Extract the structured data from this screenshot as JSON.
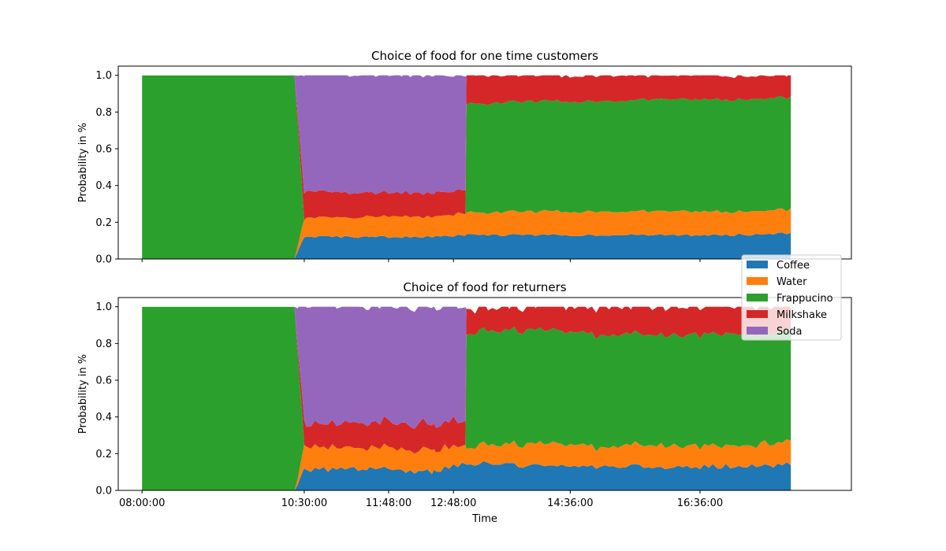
{
  "chart_data": [
    {
      "type": "area",
      "stacked": true,
      "title": "Choice of food for one time customers",
      "xlabel": "",
      "ylabel": "Probability in %",
      "ylim": [
        0,
        1.05
      ],
      "yticks": [
        "0.0",
        "0.2",
        "0.4",
        "0.6",
        "0.8",
        "1.0"
      ],
      "xlim": [
        "07:38",
        "18:56"
      ],
      "xticks": [
        "08:00:00",
        "10:30:00",
        "11:48:00",
        "12:48:00",
        "14:36:00",
        "16:36:00"
      ],
      "xtick_labels_visible": false,
      "grid": false,
      "series": [
        {
          "name": "Coffee",
          "color": "#1f77b4",
          "points": [
            [
              "08:00",
              0
            ],
            [
              "10:21",
              0
            ],
            [
              "10:30",
              0.12
            ],
            [
              "11:30",
              0.12
            ],
            [
              "12:30",
              0.12
            ],
            [
              "13:00",
              0.13
            ],
            [
              "14:00",
              0.13
            ],
            [
              "15:00",
              0.13
            ],
            [
              "16:00",
              0.13
            ],
            [
              "17:00",
              0.13
            ],
            [
              "18:00",
              0.14
            ]
          ]
        },
        {
          "name": "Water",
          "color": "#ff7f0e",
          "points": [
            [
              "08:00",
              0
            ],
            [
              "10:21",
              0
            ],
            [
              "10:30",
              0.1
            ],
            [
              "11:30",
              0.11
            ],
            [
              "12:30",
              0.11
            ],
            [
              "13:00",
              0.12
            ],
            [
              "14:00",
              0.13
            ],
            [
              "15:00",
              0.13
            ],
            [
              "16:00",
              0.13
            ],
            [
              "17:00",
              0.13
            ],
            [
              "18:00",
              0.13
            ]
          ]
        },
        {
          "name": "Frappucino",
          "color": "#2ca02c",
          "points": [
            [
              "08:00",
              1
            ],
            [
              "10:21",
              1
            ],
            [
              "10:30",
              0
            ],
            [
              "12:59",
              0
            ],
            [
              "13:00",
              0.59
            ],
            [
              "14:00",
              0.6
            ],
            [
              "15:00",
              0.6
            ],
            [
              "16:00",
              0.61
            ],
            [
              "17:00",
              0.61
            ],
            [
              "18:00",
              0.61
            ]
          ]
        },
        {
          "name": "Milkshake",
          "color": "#d62728",
          "points": [
            [
              "08:00",
              0
            ],
            [
              "10:21",
              0
            ],
            [
              "10:30",
              0.14
            ],
            [
              "11:30",
              0.13
            ],
            [
              "12:30",
              0.13
            ],
            [
              "12:59",
              0.13
            ],
            [
              "13:00",
              0.16
            ],
            [
              "14:00",
              0.14
            ],
            [
              "15:00",
              0.14
            ],
            [
              "16:00",
              0.13
            ],
            [
              "17:00",
              0.13
            ],
            [
              "18:00",
              0.12
            ]
          ]
        },
        {
          "name": "Soda",
          "color": "#9467bd",
          "points": [
            [
              "08:00",
              0
            ],
            [
              "10:21",
              0
            ],
            [
              "10:30",
              0.64
            ],
            [
              "11:30",
              0.64
            ],
            [
              "12:30",
              0.64
            ],
            [
              "12:59",
              0.62
            ],
            [
              "13:00",
              0
            ],
            [
              "18:00",
              0
            ]
          ]
        }
      ]
    },
    {
      "type": "area",
      "stacked": true,
      "title": "Choice of food for returners",
      "xlabel": "Time",
      "ylabel": "Probability in %",
      "ylim": [
        0,
        1.05
      ],
      "yticks": [
        "0.0",
        "0.2",
        "0.4",
        "0.6",
        "0.8",
        "1.0"
      ],
      "xlim": [
        "07:38",
        "18:56"
      ],
      "xticks": [
        "08:00:00",
        "10:30:00",
        "11:48:00",
        "12:48:00",
        "14:36:00",
        "16:36:00"
      ],
      "xtick_labels_visible": true,
      "grid": false,
      "series": [
        {
          "name": "Coffee",
          "color": "#1f77b4",
          "points": [
            [
              "08:00",
              0
            ],
            [
              "10:21",
              0
            ],
            [
              "10:30",
              0.11
            ],
            [
              "11:30",
              0.12
            ],
            [
              "12:30",
              0.1
            ],
            [
              "13:00",
              0.15
            ],
            [
              "14:00",
              0.13
            ],
            [
              "15:00",
              0.13
            ],
            [
              "16:00",
              0.13
            ],
            [
              "17:00",
              0.13
            ],
            [
              "18:00",
              0.14
            ]
          ]
        },
        {
          "name": "Water",
          "color": "#ff7f0e",
          "points": [
            [
              "08:00",
              0
            ],
            [
              "10:21",
              0
            ],
            [
              "10:30",
              0.12
            ],
            [
              "11:30",
              0.11
            ],
            [
              "12:30",
              0.12
            ],
            [
              "13:00",
              0.1
            ],
            [
              "14:00",
              0.12
            ],
            [
              "15:00",
              0.11
            ],
            [
              "16:00",
              0.12
            ],
            [
              "17:00",
              0.11
            ],
            [
              "18:00",
              0.12
            ]
          ]
        },
        {
          "name": "Frappucino",
          "color": "#2ca02c",
          "points": [
            [
              "08:00",
              1
            ],
            [
              "10:21",
              1
            ],
            [
              "10:30",
              0
            ],
            [
              "12:59",
              0
            ],
            [
              "13:00",
              0.62
            ],
            [
              "14:00",
              0.62
            ],
            [
              "15:00",
              0.61
            ],
            [
              "16:00",
              0.6
            ],
            [
              "17:00",
              0.61
            ],
            [
              "18:00",
              0.6
            ]
          ]
        },
        {
          "name": "Milkshake",
          "color": "#d62728",
          "points": [
            [
              "08:00",
              0
            ],
            [
              "10:21",
              0
            ],
            [
              "10:30",
              0.12
            ],
            [
              "11:30",
              0.14
            ],
            [
              "12:30",
              0.14
            ],
            [
              "12:59",
              0.14
            ],
            [
              "13:00",
              0.13
            ],
            [
              "14:00",
              0.13
            ],
            [
              "15:00",
              0.15
            ],
            [
              "16:00",
              0.15
            ],
            [
              "17:00",
              0.15
            ],
            [
              "18:00",
              0.14
            ]
          ]
        },
        {
          "name": "Soda",
          "color": "#9467bd",
          "points": [
            [
              "08:00",
              0
            ],
            [
              "10:21",
              0
            ],
            [
              "10:30",
              0.65
            ],
            [
              "11:30",
              0.63
            ],
            [
              "12:30",
              0.64
            ],
            [
              "12:59",
              0.62
            ],
            [
              "13:00",
              0
            ],
            [
              "18:00",
              0
            ]
          ]
        }
      ]
    }
  ],
  "legend": {
    "position": "right, between the two panels",
    "entries": [
      {
        "label": "Coffee",
        "color": "#1f77b4"
      },
      {
        "label": "Water",
        "color": "#ff7f0e"
      },
      {
        "label": "Frappucino",
        "color": "#2ca02c"
      },
      {
        "label": "Milkshake",
        "color": "#d62728"
      },
      {
        "label": "Soda",
        "color": "#9467bd"
      }
    ]
  }
}
